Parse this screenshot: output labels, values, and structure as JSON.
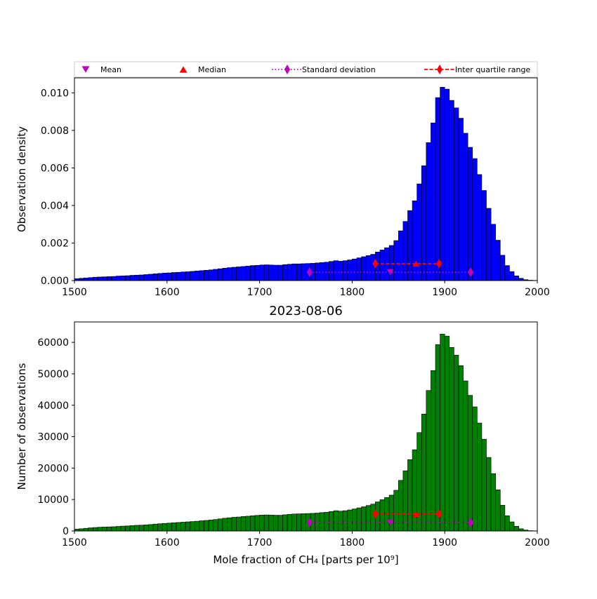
{
  "figure": {
    "title": "2023-08-06"
  },
  "legend": {
    "placement": "top, spanning width",
    "entries": [
      {
        "label": "Mean",
        "marker": "triangle-down",
        "color": "#bf00bf",
        "line": "none"
      },
      {
        "label": "Median",
        "marker": "triangle-up",
        "color": "#ff0000",
        "line": "none"
      },
      {
        "label": "Standard deviation",
        "marker": "diamond",
        "color": "#bf00bf",
        "line": "dotted"
      },
      {
        "label": "Inter quartile range",
        "marker": "diamond",
        "color": "#ff0000",
        "line": "dashed"
      }
    ]
  },
  "chart_data": [
    {
      "type": "bar",
      "panel": "top",
      "bar_color": "#0000ff",
      "edge_color": "#000000",
      "xlabel": "",
      "ylabel": "Observation density",
      "xlim": [
        1500,
        2000
      ],
      "ylim": [
        0,
        0.0108
      ],
      "xticks": [
        1500,
        1600,
        1700,
        1800,
        1900,
        2000
      ],
      "yticks": [
        0.0,
        0.002,
        0.004,
        0.006,
        0.008,
        0.01
      ],
      "ytick_labels": [
        "0.000",
        "0.002",
        "0.004",
        "0.006",
        "0.008",
        "0.010"
      ],
      "bin_start": 1500,
      "bin_width": 5,
      "values": [
        0.0001,
        0.00012,
        0.00014,
        0.00016,
        0.00018,
        0.00019,
        0.0002,
        0.00021,
        0.00022,
        0.00024,
        0.00025,
        0.00026,
        0.00028,
        0.00029,
        0.0003,
        0.00032,
        0.00034,
        0.00036,
        0.00038,
        0.0004,
        0.00041,
        0.00043,
        0.00044,
        0.00046,
        0.00047,
        0.00049,
        0.00051,
        0.00053,
        0.00055,
        0.00057,
        0.0006,
        0.00063,
        0.00066,
        0.00069,
        0.00071,
        0.00073,
        0.00075,
        0.00077,
        0.0008,
        0.00081,
        0.00083,
        0.00084,
        0.00083,
        0.00082,
        0.00082,
        0.00085,
        0.00087,
        0.00089,
        0.00089,
        0.0009,
        0.00091,
        0.00092,
        0.00094,
        0.00096,
        0.00098,
        0.00102,
        0.00106,
        0.00103,
        0.00106,
        0.0011,
        0.00115,
        0.00121,
        0.00127,
        0.00133,
        0.0014,
        0.00152,
        0.00163,
        0.00175,
        0.00187,
        0.00213,
        0.00265,
        0.00315,
        0.00373,
        0.00425,
        0.00515,
        0.00612,
        0.00735,
        0.0084,
        0.00975,
        0.0103,
        0.0102,
        0.0096,
        0.0092,
        0.00865,
        0.00785,
        0.0071,
        0.0065,
        0.00565,
        0.0048,
        0.00385,
        0.003,
        0.00215,
        0.00135,
        0.0008,
        0.00048,
        0.00025,
        0.00012,
        5e-05,
        2e-05,
        1e-05
      ],
      "markers": {
        "mean": {
          "x": 1841,
          "y": 0.00045
        },
        "median": {
          "x": 1869,
          "y": 0.0009
        },
        "std": {
          "x": [
            1754,
            1928
          ],
          "y": 0.00045
        },
        "iqr": {
          "x": [
            1825,
            1894
          ],
          "y": 0.0009
        }
      }
    },
    {
      "type": "bar",
      "panel": "bottom",
      "bar_color": "#008000",
      "edge_color": "#000000",
      "xlabel": "Mole fraction of CH₄ [parts per 10⁹]",
      "ylabel": "Number of observations",
      "xlim": [
        1500,
        2000
      ],
      "ylim": [
        0,
        66500
      ],
      "xticks": [
        1500,
        1600,
        1700,
        1800,
        1900,
        2000
      ],
      "yticks": [
        0,
        10000,
        20000,
        30000,
        40000,
        50000,
        60000
      ],
      "ytick_labels": [
        "0",
        "10000",
        "20000",
        "30000",
        "40000",
        "50000",
        "60000"
      ],
      "bin_start": 1500,
      "bin_width": 5,
      "values": [
        600,
        700,
        850,
        1000,
        1100,
        1200,
        1250,
        1300,
        1350,
        1450,
        1550,
        1600,
        1700,
        1800,
        1850,
        1950,
        2050,
        2200,
        2300,
        2400,
        2500,
        2600,
        2700,
        2800,
        2900,
        3000,
        3100,
        3250,
        3350,
        3500,
        3650,
        3850,
        4050,
        4200,
        4350,
        4450,
        4600,
        4700,
        4850,
        4950,
        5050,
        5100,
        5050,
        5000,
        5000,
        5150,
        5300,
        5400,
        5450,
        5500,
        5550,
        5600,
        5700,
        5850,
        5950,
        6200,
        6450,
        6300,
        6450,
        6700,
        7000,
        7350,
        7700,
        8100,
        8550,
        9250,
        9950,
        10650,
        11400,
        12950,
        16100,
        19150,
        22700,
        25850,
        31300,
        37200,
        44700,
        51050,
        59300,
        62650,
        62000,
        58400,
        55950,
        52600,
        47750,
        43150,
        39500,
        34350,
        29200,
        23400,
        18250,
        13100,
        8200,
        4850,
        2900,
        1500,
        700,
        300,
        100,
        50
      ],
      "markers": {
        "mean": {
          "x": 1841,
          "y": 2700
        },
        "median": {
          "x": 1869,
          "y": 5400
        },
        "std": {
          "x": [
            1754,
            1928
          ],
          "y": 2700
        },
        "iqr": {
          "x": [
            1825,
            1894
          ],
          "y": 5400
        }
      }
    }
  ]
}
